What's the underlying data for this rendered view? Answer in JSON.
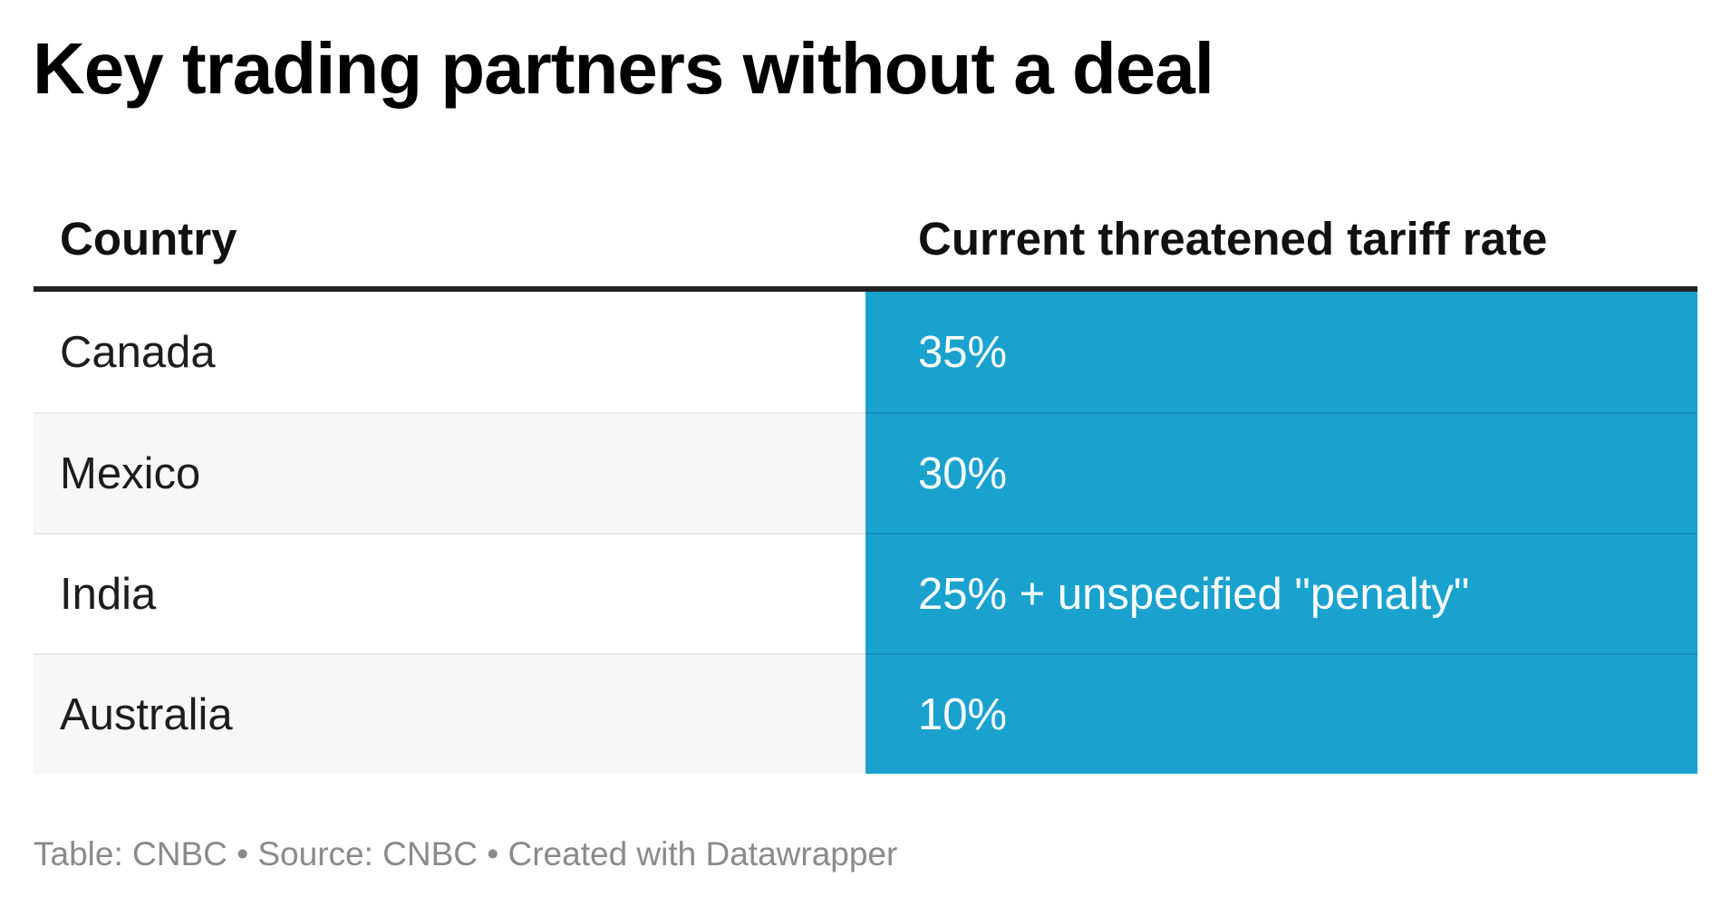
{
  "title": "Key trading partners without a deal",
  "chart_data": {
    "type": "table",
    "columns": [
      "Country",
      "Current threatened tariff rate"
    ],
    "rows": [
      [
        "Canada",
        "35%"
      ],
      [
        "Mexico",
        "30%"
      ],
      [
        "India",
        "25% + unspecified \"penalty\""
      ],
      [
        "Australia",
        "10%"
      ]
    ],
    "highlight_color": "#1aa2cf"
  },
  "footer": "Table: CNBC • Source: CNBC • Created with Datawrapper"
}
